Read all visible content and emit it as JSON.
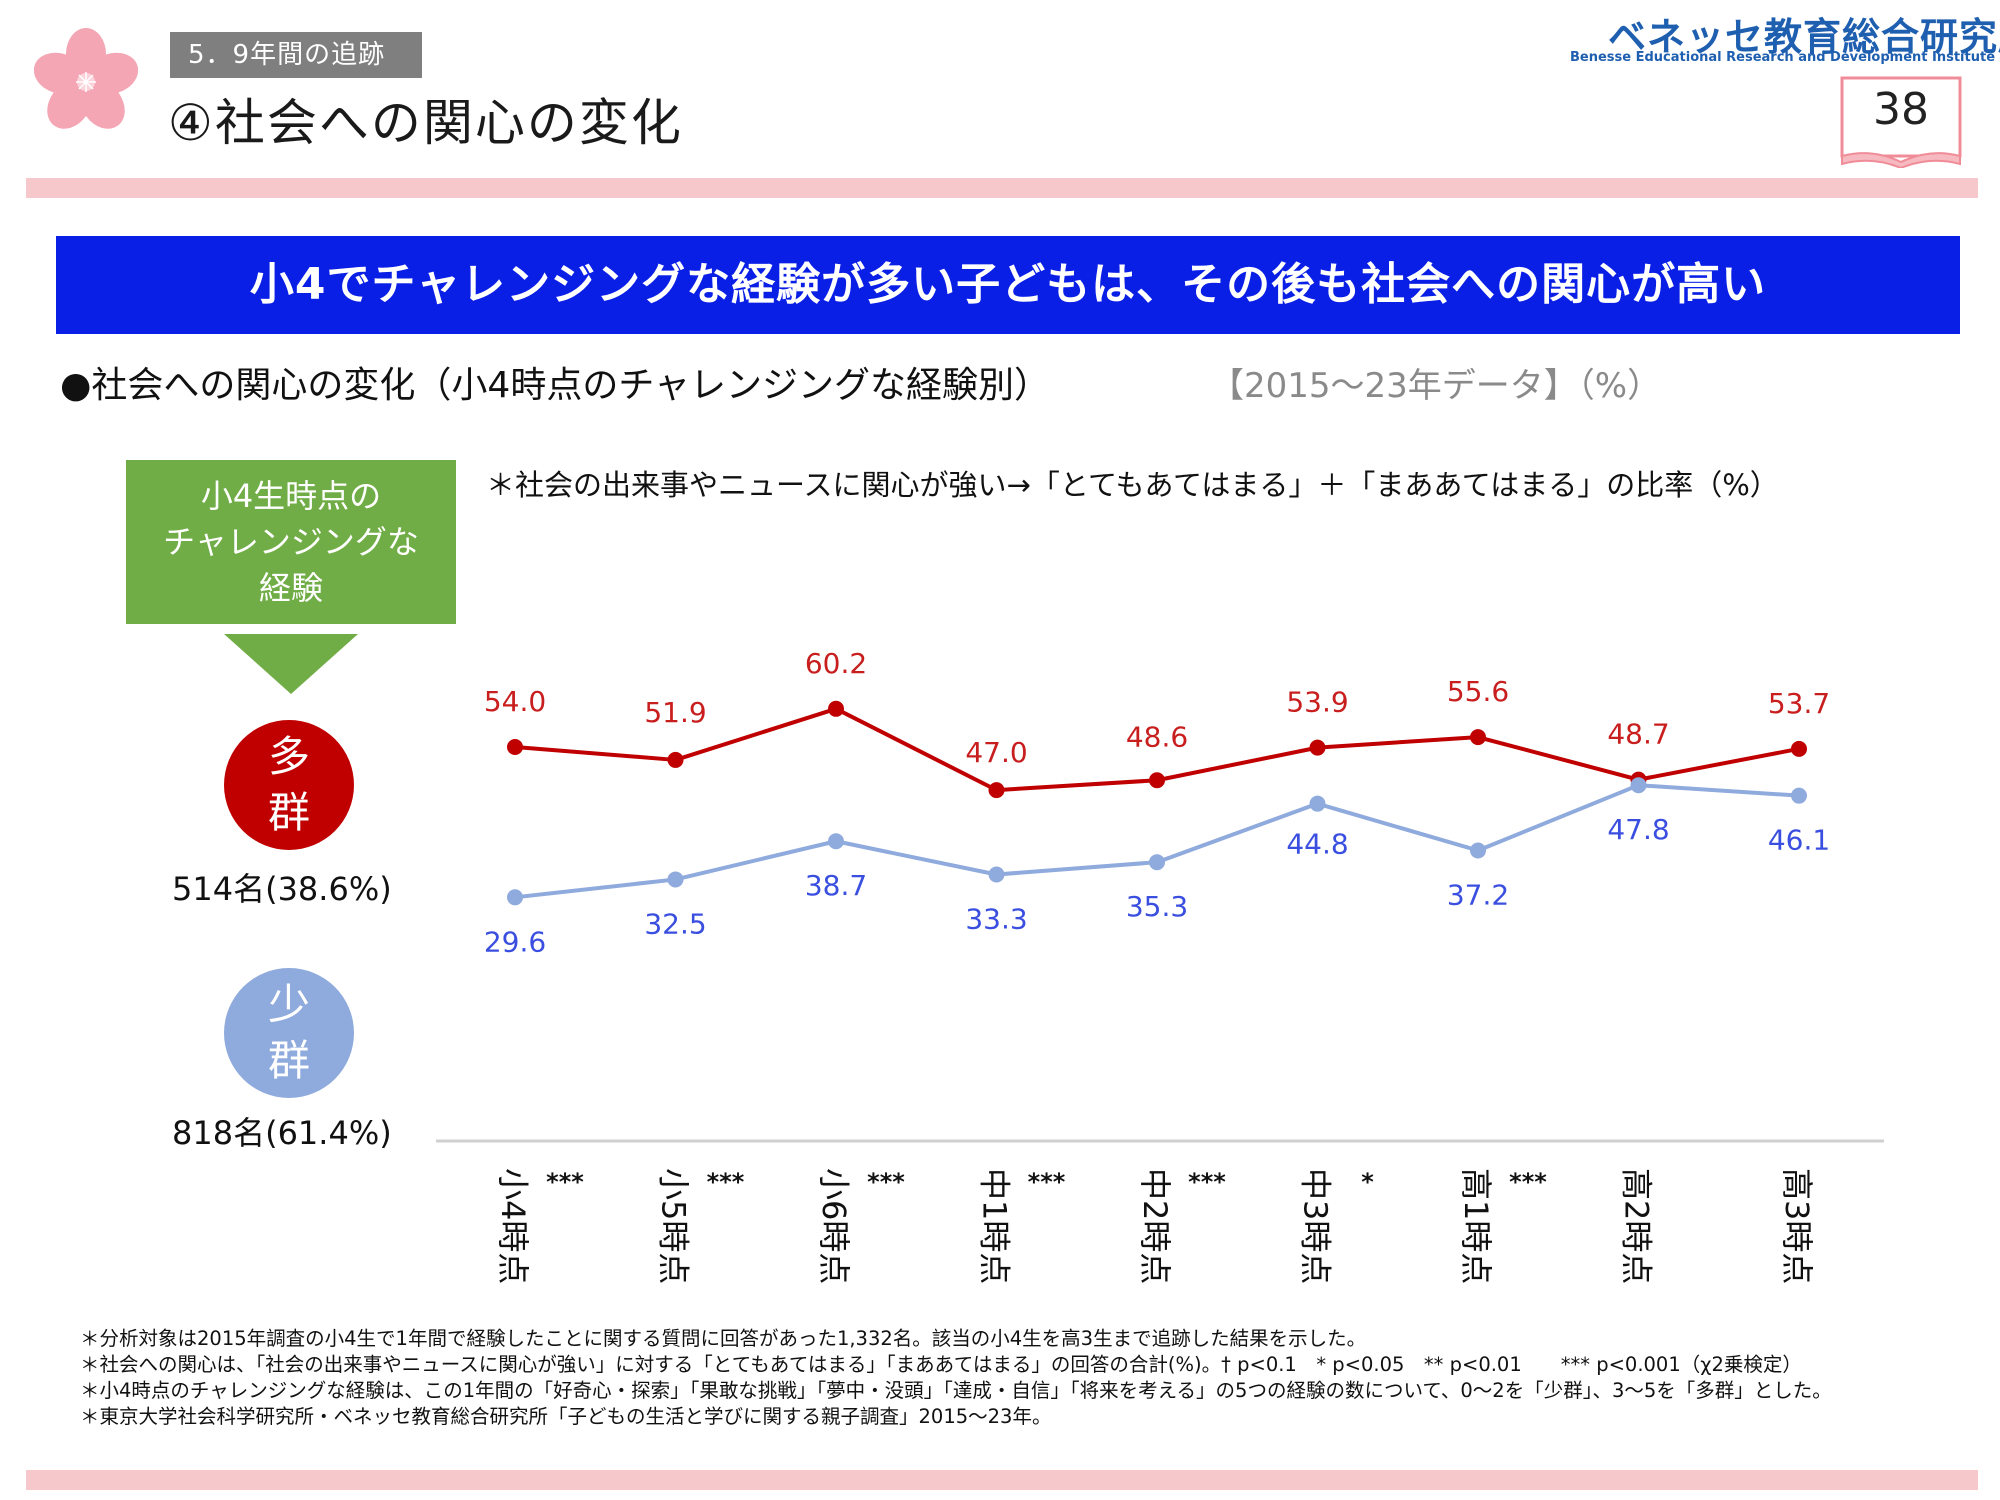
{
  "header": {
    "section_tag": "5．9年間の追跡",
    "slide_title": "④社会への関心の変化",
    "logo_jp": "ベネッセ教育総合研究所",
    "logo_en": "Benesse Educational Research and Development Institute",
    "page_number": "38"
  },
  "banner": {
    "text": "小4でチャレンジングな経験が多い子どもは、その後も社会への関心が高い"
  },
  "subtitle": {
    "main": "●社会への関心の変化（小4時点のチャレンジングな経験別）",
    "note": "【2015～23年データ】（%）"
  },
  "left_panel": {
    "arrow_label": "小4生時点の\nチャレンジングな\n経験",
    "badge_many": "多\n群",
    "count_many": "514名(38.6%)",
    "badge_few": "少\n群",
    "count_few": "818名(61.4%)"
  },
  "chart_note": "＊社会の出来事やニュースに関心が強い→「とてもあてはまる」＋「まああてはまる」の比率（%）",
  "chart_data": {
    "type": "line",
    "categories": [
      "小4時点",
      "小5時点",
      "小6時点",
      "中1時点",
      "中2時点",
      "中3時点",
      "高1時点",
      "高2時点",
      "高3時点"
    ],
    "significance": [
      "***",
      "***",
      "***",
      "***",
      "***",
      "*",
      "***",
      "",
      ""
    ],
    "series": [
      {
        "name": "多群",
        "color": "#c00000",
        "label_color": "#c81e1e",
        "values": [
          54.0,
          51.9,
          60.2,
          47.0,
          48.6,
          53.9,
          55.6,
          48.7,
          53.7
        ]
      },
      {
        "name": "少群",
        "color": "#8faadc",
        "label_color": "#3a4fe0",
        "values": [
          29.6,
          32.5,
          38.7,
          33.3,
          35.3,
          44.8,
          37.2,
          47.8,
          46.1
        ]
      }
    ],
    "grid": false,
    "ylabel": "",
    "xlabel": ""
  },
  "footnotes": [
    "＊分析対象は2015年調査の小4生で1年間で経験したことに関する質問に回答があった1,332名。該当の小4生を高3生まで追跡した結果を示した。",
    "＊社会への関心は、「社会の出来事やニュースに関心が強い」に対する「とてもあてはまる」「まああてはまる」の回答の合計(%)。† p<0.1　* p<0.05　** p<0.01　　*** p<0.001（χ2乗検定）",
    "＊小4時点のチャレンジングな経験は、この1年間の「好奇心・探索」「果敢な挑戦」「夢中・没頭」「達成・自信」「将来を考える」の5つの経験の数について、0～2を「少群」、3～5を「多群」とした。",
    "＊東京大学社会科学研究所・ベネッセ教育総合研究所「子どもの生活と学びに関する親子調査」2015～23年。"
  ]
}
